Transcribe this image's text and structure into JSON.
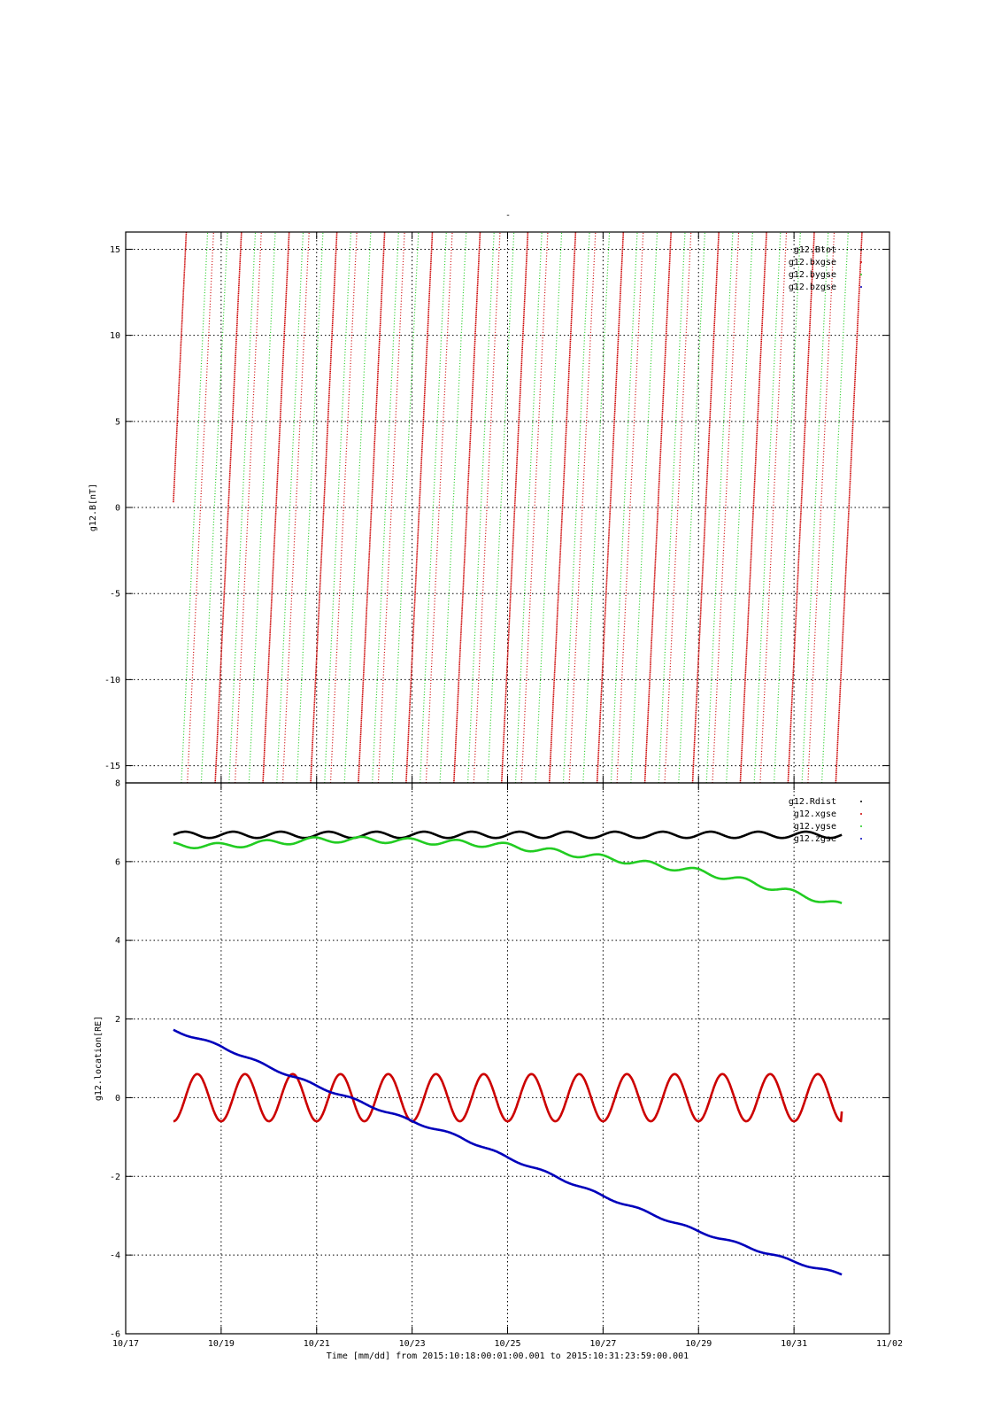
{
  "figure": {
    "title_mark": "-",
    "colors": {
      "frame": "#000000",
      "grid": "#000000",
      "black": "#000000",
      "red": "#cc0000",
      "green": "#22cc22",
      "blue": "#0000bb"
    }
  },
  "chart_data": [
    {
      "type": "scatter",
      "ylabel": "g12.B[nT]",
      "ylim": [
        -16,
        16
      ],
      "yticks": [
        "15",
        "10",
        "5",
        "0",
        "-5",
        "-10",
        "-15"
      ],
      "ytick_values": [
        15,
        10,
        5,
        0,
        -5,
        -10,
        -15
      ],
      "xlim": [
        "2015-10-17",
        "2015-11-02"
      ],
      "grid": true,
      "legend_position": "top-right",
      "legend": [
        {
          "name": "g12.Btot",
          "color": "#000000"
        },
        {
          "name": "g12.bxgse",
          "color": "#cc0000"
        },
        {
          "name": "g12.bygse",
          "color": "#22cc22"
        },
        {
          "name": "g12.bzgse",
          "color": "#0000bb"
        }
      ],
      "note": "values wrap within the panel range; each series rises through the panel repeatedly",
      "series": [
        {
          "name": "g12.bxgse",
          "color": "#cc0000",
          "style": "dense",
          "x": [
            "2015-10-18 00:00",
            "2015-10-31 23:59"
          ],
          "wraps": [
            "2015-10-18 00:00",
            "2015-10-18 21:00",
            "2015-10-19 21:00",
            "2015-10-20 21:00",
            "2015-10-21 21:00",
            "2015-10-22 21:00",
            "2015-10-23 21:00",
            "2015-10-24 21:00",
            "2015-10-25 21:00",
            "2015-10-26 21:00",
            "2015-10-27 21:00",
            "2015-10-28 21:00",
            "2015-10-29 21:00",
            "2015-10-30 21:00",
            "2015-10-31 21:00"
          ]
        },
        {
          "name": "g12.bxgse",
          "color": "#cc0000",
          "style": "sparse",
          "wraps": [
            "2015-10-18 07:00",
            "2015-10-19 07:00",
            "2015-10-20 07:00",
            "2015-10-21 07:00",
            "2015-10-22 07:00",
            "2015-10-23 07:00",
            "2015-10-24 07:00",
            "2015-10-25 07:00",
            "2015-10-26 07:00",
            "2015-10-27 07:00",
            "2015-10-28 07:00",
            "2015-10-29 07:00",
            "2015-10-30 07:00",
            "2015-10-31 07:00"
          ]
        },
        {
          "name": "g12.bygse",
          "color": "#22cc22",
          "style": "sparse",
          "wraps": [
            "2015-10-18 04:00",
            "2015-10-18 14:00",
            "2015-10-19 04:00",
            "2015-10-19 14:00",
            "2015-10-20 04:00",
            "2015-10-20 14:00",
            "2015-10-21 04:00",
            "2015-10-21 14:00",
            "2015-10-22 04:00",
            "2015-10-22 14:00",
            "2015-10-23 04:00",
            "2015-10-23 14:00",
            "2015-10-24 04:00",
            "2015-10-24 14:00",
            "2015-10-25 04:00",
            "2015-10-25 14:00",
            "2015-10-26 04:00",
            "2015-10-26 14:00",
            "2015-10-27 04:00",
            "2015-10-27 14:00",
            "2015-10-28 04:00",
            "2015-10-28 14:00",
            "2015-10-29 04:00",
            "2015-10-29 14:00",
            "2015-10-30 04:00",
            "2015-10-30 14:00",
            "2015-10-31 04:00",
            "2015-10-31 14:00"
          ]
        }
      ]
    },
    {
      "type": "line",
      "ylabel": "g12.location[RE]",
      "ylim": [
        -6,
        8
      ],
      "yticks": [
        "8",
        "6",
        "4",
        "2",
        "0",
        "-2",
        "-4",
        "-6"
      ],
      "ytick_values": [
        8,
        6,
        4,
        2,
        0,
        -2,
        -4,
        -6
      ],
      "xlim": [
        "2015-10-17",
        "2015-11-02"
      ],
      "xticks": [
        "10/17",
        "10/19",
        "10/21",
        "10/23",
        "10/25",
        "10/27",
        "10/29",
        "10/31",
        "11/02"
      ],
      "xtick_values": [
        "2015-10-17",
        "2015-10-19",
        "2015-10-21",
        "2015-10-23",
        "2015-10-25",
        "2015-10-27",
        "2015-10-29",
        "2015-10-31",
        "2015-11-02"
      ],
      "xlabel": "Time [mm/dd]  from 2015:10:18:00:01:00.001  to  2015:10:31:23:59:00.001",
      "grid": true,
      "legend_position": "top-right",
      "legend": [
        {
          "name": "g12.Rdist",
          "color": "#000000"
        },
        {
          "name": "g12.xgse",
          "color": "#cc0000"
        },
        {
          "name": "g12.ygse",
          "color": "#22cc22"
        },
        {
          "name": "g12.zgse",
          "color": "#0000bb"
        }
      ],
      "series": [
        {
          "name": "g12.Rdist",
          "color": "#000000",
          "x": [
            "2015-10-18",
            "2015-10-19",
            "2015-10-20",
            "2015-10-21",
            "2015-10-22",
            "2015-10-23",
            "2015-10-24",
            "2015-10-25",
            "2015-10-26",
            "2015-10-27",
            "2015-10-28",
            "2015-10-29",
            "2015-10-30",
            "2015-10-31",
            "2015-11-01"
          ],
          "y": [
            6.68,
            6.68,
            6.68,
            6.68,
            6.68,
            6.68,
            6.68,
            6.68,
            6.68,
            6.68,
            6.68,
            6.68,
            6.68,
            6.68,
            6.68
          ],
          "daily_amplitude": 0.08
        },
        {
          "name": "g12.xgse",
          "color": "#cc0000",
          "x": [
            "2015-10-18",
            "2015-10-19",
            "2015-10-20",
            "2015-10-21",
            "2015-10-22",
            "2015-10-23",
            "2015-10-24",
            "2015-10-25",
            "2015-10-26",
            "2015-10-27",
            "2015-10-28",
            "2015-10-29",
            "2015-10-30",
            "2015-10-31",
            "2015-11-01"
          ],
          "y": [
            -0.58,
            -0.58,
            -0.58,
            -0.58,
            -0.58,
            -0.58,
            -0.58,
            -0.58,
            -0.58,
            -0.58,
            -0.58,
            -0.58,
            -0.58,
            -0.58,
            -0.35
          ],
          "daily_amplitude": 0.6
        },
        {
          "name": "g12.ygse",
          "color": "#22cc22",
          "x": [
            "2015-10-18",
            "2015-10-19",
            "2015-10-20",
            "2015-10-21",
            "2015-10-22",
            "2015-10-23",
            "2015-10-24",
            "2015-10-25",
            "2015-10-26",
            "2015-10-27",
            "2015-10-28",
            "2015-10-29",
            "2015-10-30",
            "2015-10-31",
            "2015-11-01"
          ],
          "y": [
            6.42,
            6.4,
            6.48,
            6.55,
            6.56,
            6.52,
            6.48,
            6.4,
            6.25,
            6.1,
            5.93,
            5.75,
            5.5,
            5.2,
            4.88
          ],
          "daily_amplitude": 0.07
        },
        {
          "name": "g12.zgse",
          "color": "#0000bb",
          "x": [
            "2015-10-18",
            "2015-10-19",
            "2015-10-20",
            "2015-10-21",
            "2015-10-22",
            "2015-10-23",
            "2015-10-24",
            "2015-10-25",
            "2015-10-26",
            "2015-10-27",
            "2015-10-28",
            "2015-10-29",
            "2015-10-30",
            "2015-10-31",
            "2015-11-01"
          ],
          "y": [
            1.72,
            1.3,
            0.78,
            0.3,
            -0.15,
            -0.6,
            -1.0,
            -1.52,
            -2.0,
            -2.5,
            -2.95,
            -3.4,
            -3.78,
            -4.17,
            -4.5
          ],
          "daily_amplitude": 0.03
        }
      ]
    }
  ]
}
